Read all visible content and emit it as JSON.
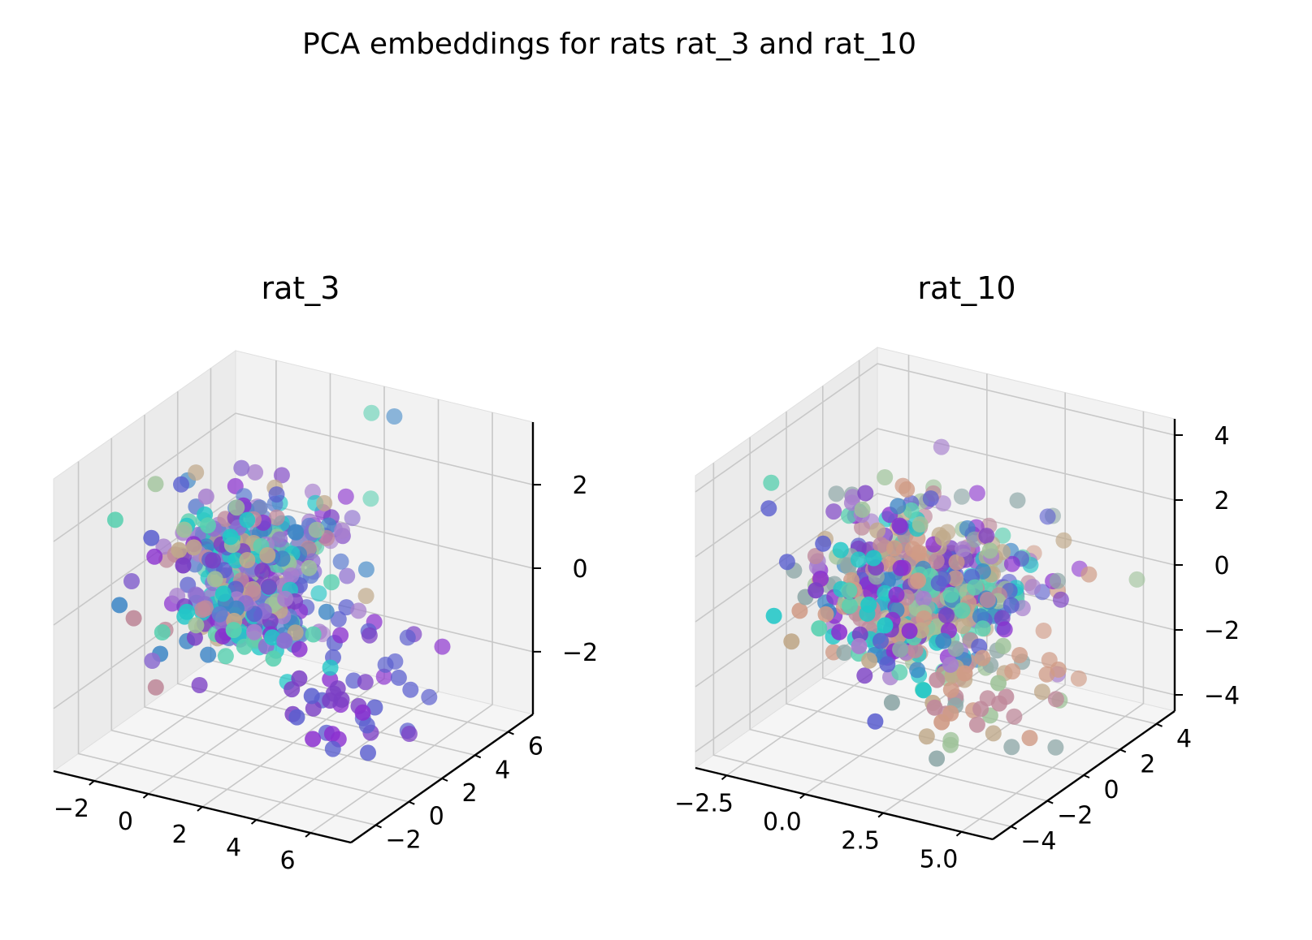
{
  "figure": {
    "suptitle": "PCA embeddings for rats rat_3 and rat_10"
  },
  "chart_data": [
    {
      "type": "scatter",
      "projection": "3d",
      "title": "rat_3",
      "xlabel": "",
      "ylabel": "",
      "zlabel": "",
      "grid": true,
      "xlim": [
        -3.5,
        7.5
      ],
      "ylim": [
        -3.5,
        7.5
      ],
      "zlim": [
        -3.5,
        3.5
      ],
      "x_ticks": [
        -2,
        0,
        2,
        4,
        6
      ],
      "x_tick_labels": [
        "−2",
        "0",
        "2",
        "4",
        "6"
      ],
      "y_ticks": [
        -2,
        0,
        2,
        4,
        6
      ],
      "y_tick_labels": [
        "−2",
        "0",
        "2",
        "4",
        "6"
      ],
      "z_ticks": [
        -2,
        0,
        2
      ],
      "z_tick_labels": [
        "−2",
        "0",
        "2"
      ],
      "palette": [
        "#7b3fc4",
        "#8a2fcf",
        "#5b5fcf",
        "#3d86c6",
        "#22c7c7",
        "#5ad0b0",
        "#9fc39a",
        "#c0a98a",
        "#bf8a9b",
        "#a77fce",
        "#8e6fd0",
        "#5f7fd0"
      ],
      "points": []
    },
    {
      "type": "scatter",
      "projection": "3d",
      "title": "rat_10",
      "xlabel": "",
      "ylabel": "",
      "zlabel": "",
      "grid": true,
      "xlim": [
        -3.5,
        6.0
      ],
      "ylim": [
        -5.0,
        5.0
      ],
      "zlim": [
        -4.5,
        4.5
      ],
      "x_ticks": [
        -2.5,
        0.0,
        2.5,
        5.0
      ],
      "x_tick_labels": [
        "−2.5",
        "0.0",
        "2.5",
        "5.0"
      ],
      "y_ticks": [
        -4,
        -2,
        0,
        2,
        4
      ],
      "y_tick_labels": [
        "−4",
        "−2",
        "0",
        "2",
        "4"
      ],
      "z_ticks": [
        -4,
        -2,
        0,
        2,
        4
      ],
      "z_tick_labels": [
        "−4",
        "−2",
        "0",
        "2",
        "4"
      ],
      "palette": [
        "#7b3fc4",
        "#8a2fcf",
        "#5b5fcf",
        "#3d86c6",
        "#22c7c7",
        "#5ad0b0",
        "#9fc39a",
        "#c0a98a",
        "#d09b86",
        "#bf8a9b",
        "#8fa8a8",
        "#a77fce"
      ],
      "points": []
    }
  ]
}
